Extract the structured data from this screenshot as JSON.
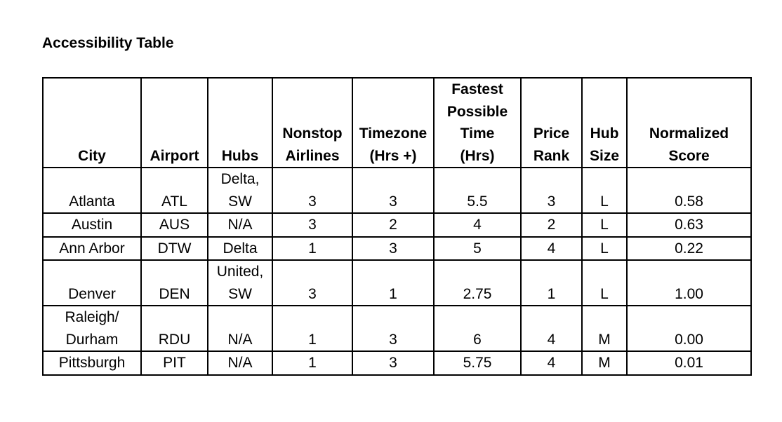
{
  "title": "Accessibility Table",
  "columns": [
    {
      "lines": [
        "City"
      ]
    },
    {
      "lines": [
        "Airport"
      ]
    },
    {
      "lines": [
        "Hubs"
      ]
    },
    {
      "lines": [
        "Nonstop",
        "Airlines"
      ]
    },
    {
      "lines": [
        "Timezone",
        "(Hrs +)"
      ]
    },
    {
      "lines": [
        "Fastest",
        "Possible",
        "Time",
        "(Hrs)"
      ]
    },
    {
      "lines": [
        "Price",
        "Rank"
      ]
    },
    {
      "lines": [
        "Hub",
        "Size"
      ]
    },
    {
      "lines": [
        "Normalized",
        "Score"
      ]
    }
  ],
  "rows": [
    {
      "city": [
        "Atlanta"
      ],
      "airport": "ATL",
      "hubs": [
        "Delta,",
        "SW"
      ],
      "nonstop_airlines": "3",
      "timezone": "3",
      "fastest_time": "5.5",
      "price_rank": "3",
      "hub_size": "L",
      "normalized_score": "0.58"
    },
    {
      "city": [
        "Austin"
      ],
      "airport": "AUS",
      "hubs": [
        "N/A"
      ],
      "nonstop_airlines": "3",
      "timezone": "2",
      "fastest_time": "4",
      "price_rank": "2",
      "hub_size": "L",
      "normalized_score": "0.63"
    },
    {
      "city": [
        "Ann Arbor"
      ],
      "airport": "DTW",
      "hubs": [
        "Delta"
      ],
      "nonstop_airlines": "1",
      "timezone": "3",
      "fastest_time": "5",
      "price_rank": "4",
      "hub_size": "L",
      "normalized_score": "0.22"
    },
    {
      "city": [
        "Denver"
      ],
      "airport": "DEN",
      "hubs": [
        "United,",
        "SW"
      ],
      "nonstop_airlines": "3",
      "timezone": "1",
      "fastest_time": "2.75",
      "price_rank": "1",
      "hub_size": "L",
      "normalized_score": "1.00"
    },
    {
      "city": [
        "Raleigh/",
        "Durham"
      ],
      "airport": "RDU",
      "hubs": [
        "N/A"
      ],
      "nonstop_airlines": "1",
      "timezone": "3",
      "fastest_time": "6",
      "price_rank": "4",
      "hub_size": "M",
      "normalized_score": "0.00"
    },
    {
      "city": [
        "Pittsburgh"
      ],
      "airport": "PIT",
      "hubs": [
        "N/A"
      ],
      "nonstop_airlines": "1",
      "timezone": "3",
      "fastest_time": "5.75",
      "price_rank": "4",
      "hub_size": "M",
      "normalized_score": "0.01"
    }
  ]
}
